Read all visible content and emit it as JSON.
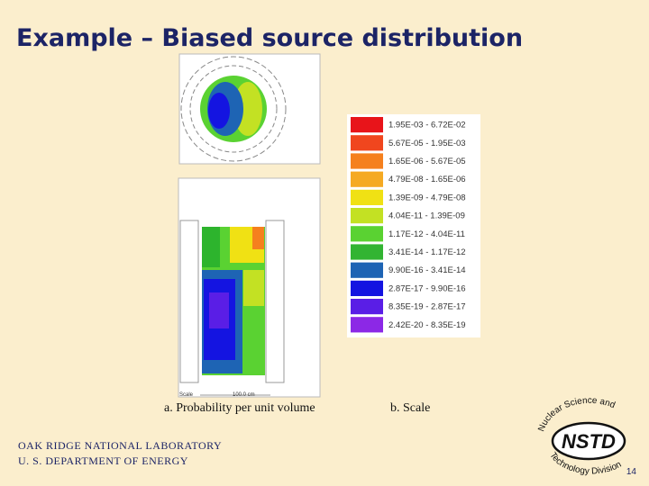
{
  "header": {
    "title": "Example – Biased source distribution"
  },
  "figure": {
    "scale_label": "Scale",
    "scale_length": "100.0 cm",
    "caption_a": "a.  Probability per unit volume",
    "caption_b": "b. Scale",
    "legend": [
      {
        "label": "1.95E-03 - 6.72E-02",
        "color": "#e8141a"
      },
      {
        "label": "5.67E-05 - 1.95E-03",
        "color": "#f0461e"
      },
      {
        "label": "1.65E-06 - 5.67E-05",
        "color": "#f5801e"
      },
      {
        "label": "4.79E-08 - 1.65E-06",
        "color": "#f5aa23"
      },
      {
        "label": "1.39E-09 - 4.79E-08",
        "color": "#f0e114"
      },
      {
        "label": "4.04E-11 - 1.39E-09",
        "color": "#c3e123"
      },
      {
        "label": "1.17E-12 - 4.04E-11",
        "color": "#5ad232"
      },
      {
        "label": "3.41E-14 - 1.17E-12",
        "color": "#32b432"
      },
      {
        "label": "9.90E-16 - 3.41E-14",
        "color": "#1e64b4"
      },
      {
        "label": "2.87E-17 - 9.90E-16",
        "color": "#1414e1"
      },
      {
        "label": "8.35E-19 - 2.87E-17",
        "color": "#5a1ee6"
      },
      {
        "label": "2.42E-20 - 8.35E-19",
        "color": "#8c28e6"
      }
    ]
  },
  "footer": {
    "org_line1": "OAK RIDGE NATIONAL LABORATORY",
    "org_line2": "U. S. DEPARTMENT OF ENERGY",
    "logo_top": "Nuclear Science and",
    "logo_mid": "NSTD",
    "logo_bottom": "Technology Division",
    "page_number": "14"
  }
}
